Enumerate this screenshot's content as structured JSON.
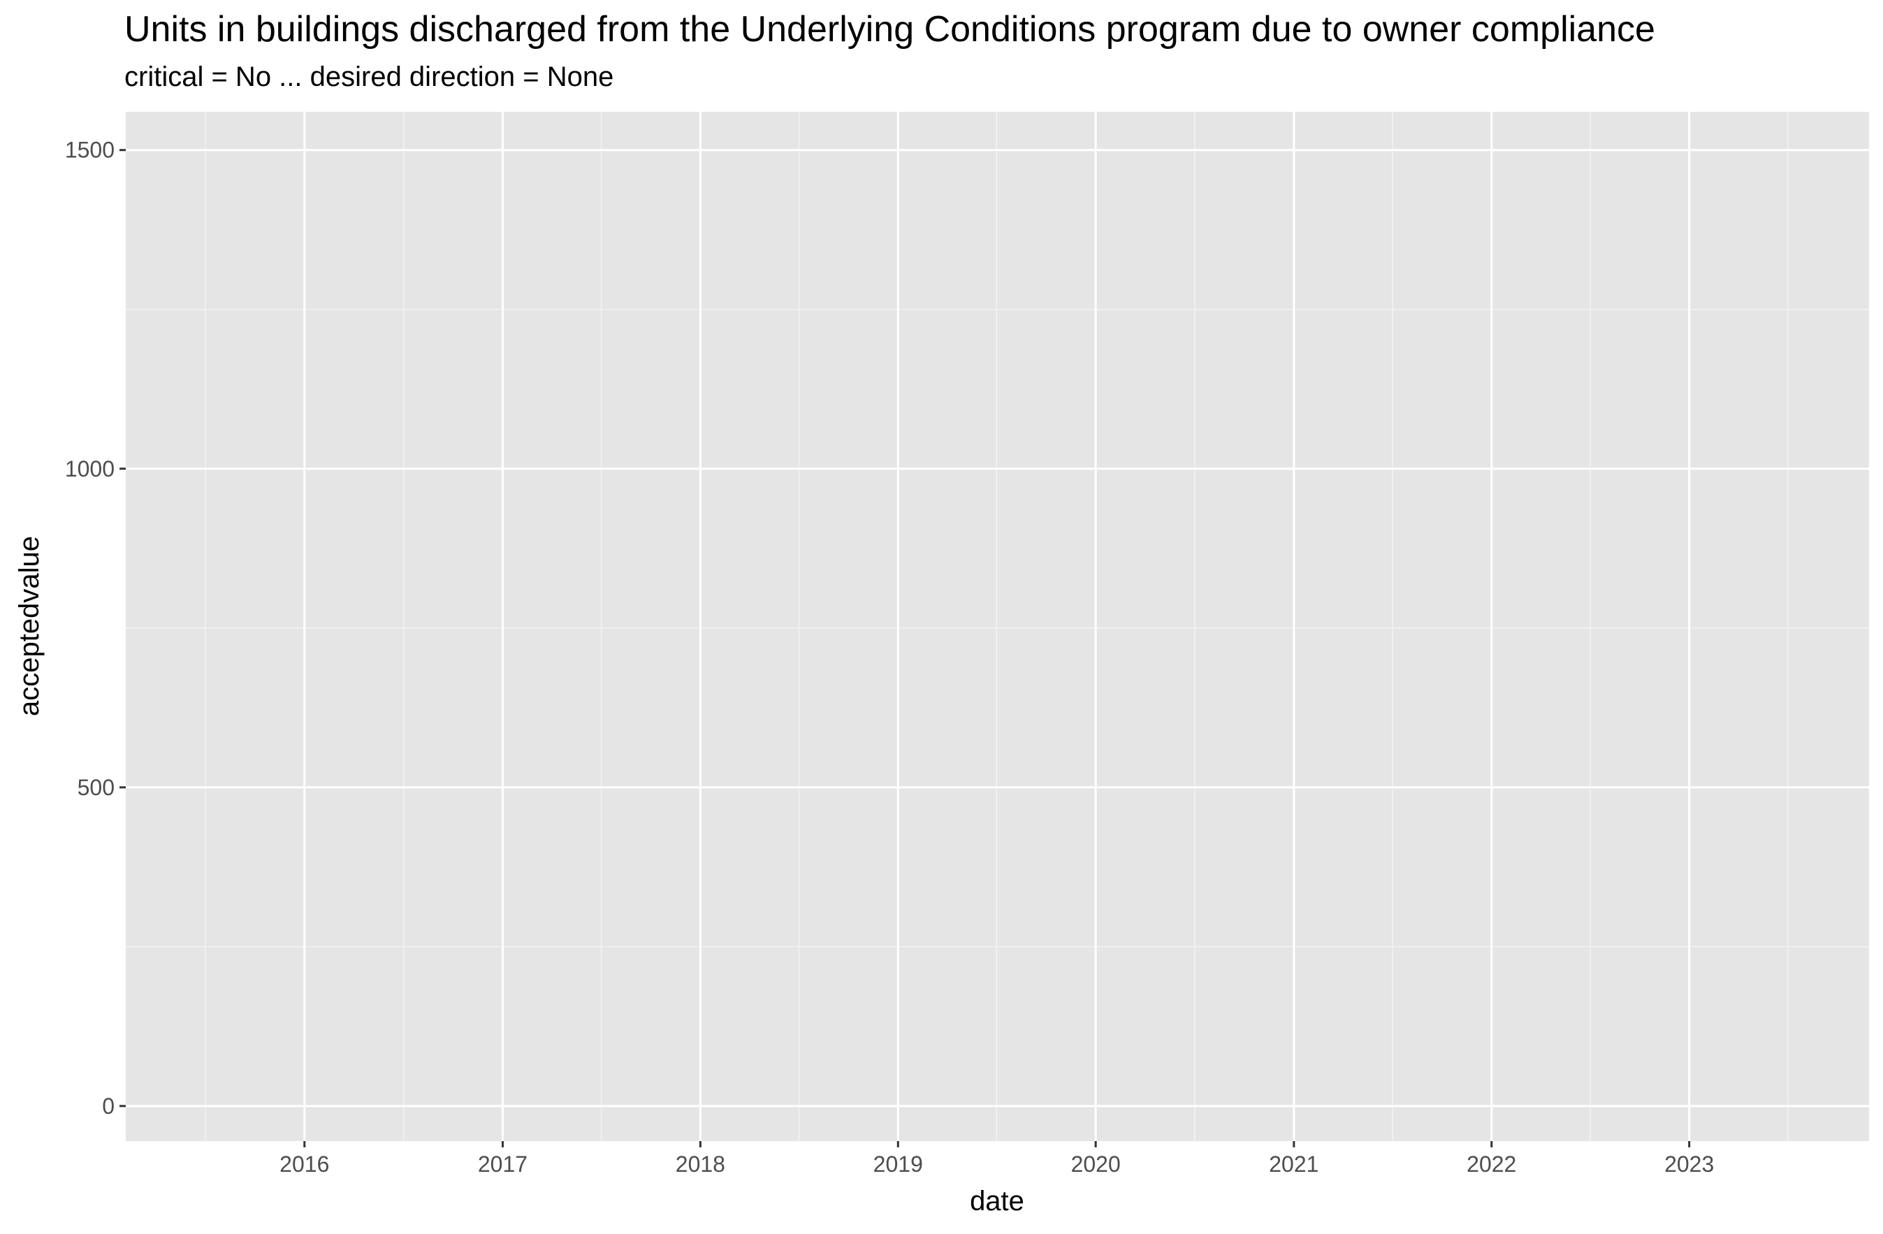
{
  "chart_data": {
    "type": "line",
    "title": "Units in buildings discharged from the Underlying Conditions program due to owner compliance",
    "subtitle": "critical = No ... desired direction = None",
    "xlabel": "date",
    "ylabel": "acceptedvalue",
    "x_ticks": [
      "2016",
      "2017",
      "2018",
      "2019",
      "2020",
      "2021",
      "2022",
      "2023"
    ],
    "y_ticks": [
      0,
      500,
      1000,
      1500
    ],
    "xlim": [
      "2015-02-05",
      "2023-11-29"
    ],
    "ylim": [
      -55,
      1560
    ],
    "grid": true,
    "legend": "none",
    "series": [],
    "colors": {
      "panel_background": "#e5e5e5",
      "grid_line": "#ffffff",
      "tick_text": "#4d4d4d"
    }
  }
}
